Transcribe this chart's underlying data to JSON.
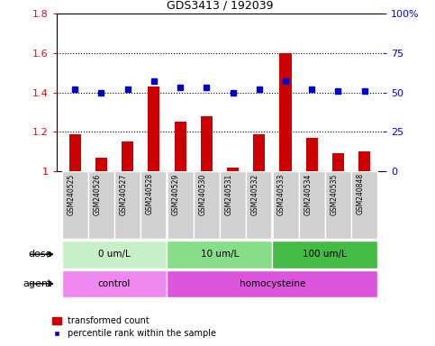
{
  "title": "GDS3413 / 192039",
  "samples": [
    "GSM240525",
    "GSM240526",
    "GSM240527",
    "GSM240528",
    "GSM240529",
    "GSM240530",
    "GSM240531",
    "GSM240532",
    "GSM240533",
    "GSM240534",
    "GSM240535",
    "GSM240848"
  ],
  "transformed_counts": [
    1.19,
    1.07,
    1.15,
    1.43,
    1.25,
    1.28,
    1.02,
    1.19,
    1.6,
    1.17,
    1.09,
    1.1
  ],
  "percentile_ranks": [
    52,
    50,
    52,
    57,
    53,
    53,
    50,
    52,
    57,
    52,
    51,
    51
  ],
  "bar_color": "#cc0000",
  "dot_color": "#0000cc",
  "ylim_left": [
    1.0,
    1.8
  ],
  "ylim_right": [
    0,
    100
  ],
  "yticks_left": [
    1.0,
    1.2,
    1.4,
    1.6,
    1.8
  ],
  "ytick_labels_left": [
    "1",
    "1.2",
    "1.4",
    "1.6",
    "1.8"
  ],
  "yticks_right": [
    0,
    25,
    50,
    75,
    100
  ],
  "ytick_labels_right": [
    "0",
    "25",
    "50",
    "75",
    "100%"
  ],
  "hgrid_lines": [
    1.2,
    1.4,
    1.6
  ],
  "dose_groups": [
    {
      "label": "0 um/L",
      "start": 0,
      "end": 3,
      "color": "#c8f0c8"
    },
    {
      "label": "10 um/L",
      "start": 4,
      "end": 7,
      "color": "#88dd88"
    },
    {
      "label": "100 um/L",
      "start": 8,
      "end": 11,
      "color": "#44bb44"
    }
  ],
  "agent_groups": [
    {
      "label": "control",
      "start": 0,
      "end": 3,
      "color": "#ee88ee"
    },
    {
      "label": "homocysteine",
      "start": 4,
      "end": 11,
      "color": "#dd55dd"
    }
  ],
  "dose_label": "dose",
  "agent_label": "agent",
  "legend_bar_label": "transformed count",
  "legend_dot_label": "percentile rank within the sample",
  "sample_box_color": "#d0d0d0",
  "bar_width": 0.45,
  "group_boundaries": [
    3.5,
    7.5
  ]
}
